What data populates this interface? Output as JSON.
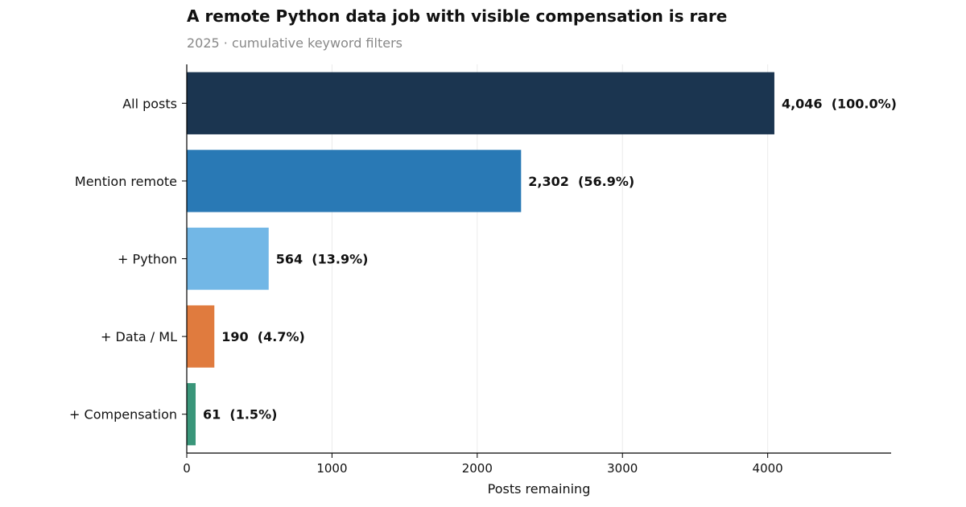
{
  "chart_data": {
    "type": "bar",
    "orientation": "horizontal",
    "title": "A remote Python data job with visible compensation is rare",
    "subtitle": "2025 · cumulative keyword filters",
    "xlabel": "Posts remaining",
    "ylabel": "",
    "xlim": [
      0,
      4850
    ],
    "x_ticks": [
      0,
      1000,
      2000,
      3000,
      4000
    ],
    "grid": "vertical",
    "categories": [
      "All posts",
      "Mention remote",
      "+ Python",
      "+ Data / ML",
      "+ Compensation"
    ],
    "values": [
      4046,
      2302,
      564,
      190,
      61
    ],
    "data_labels": [
      "4,046  (100.0%)",
      "2,302  (56.9%)",
      "564  (13.9%)",
      "190  (4.7%)",
      "61  (1.5%)"
    ],
    "colors": [
      "#1b3550",
      "#2979b5",
      "#72b7e6",
      "#e07b3e",
      "#3a967a"
    ]
  }
}
